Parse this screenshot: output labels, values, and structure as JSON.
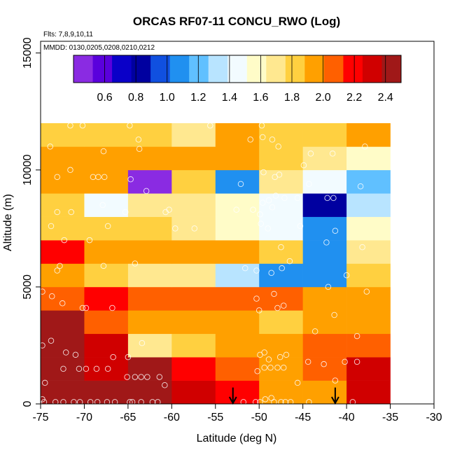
{
  "chart_data": {
    "type": "heatmap",
    "title": "ORCAS RF07-11 CONCU_RWO (Log)",
    "subtitle_flights": "Flts: 7,8,9,10,11",
    "subtitle_dates": "MMDD: 0130,0205,0208,0210,0212",
    "xlabel": "Latitude (deg N)",
    "ylabel": "Altitude (m)",
    "xlim": [
      -75,
      -30
    ],
    "ylim": [
      0,
      15500
    ],
    "xticks": [
      -75,
      -70,
      -65,
      -60,
      -55,
      -50,
      -45,
      -40,
      -35,
      -30
    ],
    "xtick_labels": [
      "-75",
      "-70",
      "-65",
      "-60",
      "-55",
      "-50",
      "-45",
      "-40",
      "-35",
      "-30"
    ],
    "yticks": [
      0,
      5000,
      10000,
      15000
    ],
    "ytick_labels": [
      "0",
      "5000",
      "10000",
      "15000"
    ],
    "colorbar": {
      "range": [
        0.4,
        2.5
      ],
      "ticks": [
        0.6,
        0.8,
        1.0,
        1.2,
        1.4,
        1.6,
        1.8,
        2.0,
        2.2,
        2.4
      ],
      "tick_labels": [
        "0.6",
        "0.8",
        "1.0",
        "1.2",
        "1.4",
        "1.6",
        "1.8",
        "2.0",
        "2.2",
        "2.4"
      ],
      "colors": [
        "#8a2be2",
        "#5a00dc",
        "#0a00c8",
        "#0000a0",
        "#1050e0",
        "#2090f0",
        "#60c0ff",
        "#b8e4ff",
        "#f2fbff",
        "#fffcc8",
        "#ffe890",
        "#ffd040",
        "#ffa000",
        "#ff6000",
        "#ff0000",
        "#d00000",
        "#a01818"
      ]
    },
    "x_edges": [
      -75,
      -70,
      -65,
      -60,
      -55,
      -50,
      -45,
      -40,
      -35
    ],
    "y_edges": [
      0,
      1000,
      2000,
      3000,
      4000,
      5000,
      6000,
      7000,
      8000,
      9000,
      10000,
      11000,
      12000
    ],
    "cells": [
      [
        2.44,
        2.44,
        2.44,
        2.28,
        2.24,
        1.92,
        1.98,
        2.28
      ],
      [
        2.44,
        2.26,
        2.44,
        2.24,
        2.02,
        1.98,
        2.08,
        2.28
      ],
      [
        2.44,
        2.3,
        1.66,
        1.82,
        1.96,
        1.96,
        2.02,
        2.1
      ],
      [
        2.44,
        2.12,
        1.9,
        1.96,
        1.98,
        1.86,
        1.96,
        1.98
      ],
      [
        2.12,
        2.22,
        2.12,
        2.06,
        2.04,
        2.02,
        2.0,
        1.96
      ],
      [
        2.0,
        1.82,
        1.64,
        1.68,
        1.32,
        1.12,
        1.12,
        1.82
      ],
      [
        2.24,
        1.9,
        1.9,
        1.9,
        1.9,
        1.82,
        1.14,
        1.68
      ],
      [
        1.82,
        1.82,
        1.76,
        1.66,
        1.56,
        1.4,
        1.12,
        1.52
      ],
      [
        1.82,
        1.46,
        1.66,
        1.68,
        1.62,
        1.4,
        0.82,
        1.38
      ],
      [
        1.92,
        1.94,
        0.48,
        1.8,
        1.14,
        1.72,
        1.5,
        1.24
      ],
      [
        1.9,
        1.96,
        1.9,
        1.92,
        1.92,
        1.82,
        1.74,
        1.6
      ],
      [
        1.86,
        1.84,
        1.86,
        1.72,
        1.9,
        1.86,
        1.88,
        1.9
      ]
    ],
    "arrows": [
      {
        "lat": -53.0,
        "alt_top": 700
      },
      {
        "lat": -41.3,
        "alt_top": 700
      }
    ],
    "points": [
      [
        -74.8,
        200
      ],
      [
        -74.6,
        80
      ],
      [
        -73.3,
        80
      ],
      [
        -72.4,
        80
      ],
      [
        -71.2,
        80
      ],
      [
        -70.5,
        80
      ],
      [
        -69.3,
        80
      ],
      [
        -68.5,
        80
      ],
      [
        -67.4,
        80
      ],
      [
        -66.5,
        80
      ],
      [
        -64.8,
        80
      ],
      [
        -64.5,
        80
      ],
      [
        -63.5,
        80
      ],
      [
        -62.2,
        80
      ],
      [
        -61.6,
        80
      ],
      [
        -51.8,
        80
      ],
      [
        -50.4,
        80
      ],
      [
        -49.9,
        80
      ],
      [
        -48.3,
        80
      ],
      [
        -47.5,
        80
      ],
      [
        -47.0,
        80
      ],
      [
        -46.4,
        80
      ],
      [
        -39.3,
        80
      ],
      [
        -44.3,
        80
      ],
      [
        -48.6,
        250
      ],
      [
        -49.3,
        200
      ],
      [
        -74.5,
        900
      ],
      [
        -72.4,
        1500
      ],
      [
        -70.6,
        1500
      ],
      [
        -69.8,
        1500
      ],
      [
        -68.6,
        1500
      ],
      [
        -67.3,
        1500
      ],
      [
        -65.1,
        1150
      ],
      [
        -64.2,
        1150
      ],
      [
        -63.5,
        1150
      ],
      [
        -62.8,
        1150
      ],
      [
        -61.4,
        1150
      ],
      [
        -60.8,
        800
      ],
      [
        -50.2,
        1400
      ],
      [
        -49.4,
        1550
      ],
      [
        -48.7,
        1550
      ],
      [
        -47.9,
        1550
      ],
      [
        -47.2,
        1550
      ],
      [
        -44.4,
        1800
      ],
      [
        -42.6,
        1700
      ],
      [
        -40.2,
        1800
      ],
      [
        -38.8,
        1800
      ],
      [
        -45.6,
        900
      ],
      [
        -41.3,
        1000
      ],
      [
        -74.8,
        2500
      ],
      [
        -73.8,
        2700
      ],
      [
        -72.1,
        2200
      ],
      [
        -71.0,
        2100
      ],
      [
        -66.7,
        2000
      ],
      [
        -65.0,
        2000
      ],
      [
        -63.4,
        2600
      ],
      [
        -49.9,
        2100
      ],
      [
        -49.4,
        2200
      ],
      [
        -48.9,
        1900
      ],
      [
        -47.6,
        2000
      ],
      [
        -46.9,
        2100
      ],
      [
        -38.8,
        2900
      ],
      [
        -43.6,
        3100
      ],
      [
        -41.4,
        3800
      ],
      [
        -73.7,
        4600
      ],
      [
        -72.5,
        4300
      ],
      [
        -70.2,
        4100
      ],
      [
        -69.8,
        4100
      ],
      [
        -66.8,
        4100
      ],
      [
        -73.1,
        5700
      ],
      [
        -72.8,
        5900
      ],
      [
        -50.0,
        4000
      ],
      [
        -50.3,
        4500
      ],
      [
        -47.9,
        4100
      ],
      [
        -47.2,
        4200
      ],
      [
        -48.3,
        4700
      ],
      [
        -37.7,
        4800
      ],
      [
        -74.8,
        4800
      ],
      [
        -67.8,
        5900
      ],
      [
        -64.2,
        6000
      ],
      [
        -51.6,
        5800
      ],
      [
        -50.3,
        5700
      ],
      [
        -48.6,
        5600
      ],
      [
        -47.4,
        5800
      ],
      [
        -42.1,
        5000
      ],
      [
        -40.0,
        5500
      ],
      [
        -46.5,
        6100
      ],
      [
        -47.5,
        6700
      ],
      [
        -42.3,
        6900
      ],
      [
        -38.2,
        6700
      ],
      [
        -72.3,
        7000
      ],
      [
        -69.4,
        7000
      ],
      [
        -67.3,
        7600
      ],
      [
        -59.6,
        7500
      ],
      [
        -57.4,
        7500
      ],
      [
        -73.8,
        7600
      ],
      [
        -73.1,
        8200
      ],
      [
        -71.5,
        8200
      ],
      [
        -67.9,
        8500
      ],
      [
        -65.3,
        8200
      ],
      [
        -60.7,
        8200
      ],
      [
        -60.3,
        8300
      ],
      [
        -52.6,
        8300
      ],
      [
        -50.7,
        8300
      ],
      [
        -49.9,
        8100
      ],
      [
        -49.6,
        8600
      ],
      [
        -48.5,
        8400
      ],
      [
        -48.9,
        8700
      ],
      [
        -48.1,
        8900
      ],
      [
        -47.1,
        8800
      ],
      [
        -45.6,
        8800
      ],
      [
        -42.2,
        8800
      ],
      [
        -41.5,
        8800
      ],
      [
        -45.3,
        7600
      ],
      [
        -49.8,
        7700
      ],
      [
        -49.0,
        7500
      ],
      [
        -41.3,
        7400
      ],
      [
        -73.1,
        9700
      ],
      [
        -71.6,
        10000
      ],
      [
        -69.0,
        9700
      ],
      [
        -68.4,
        9700
      ],
      [
        -67.7,
        9700
      ],
      [
        -64.7,
        9600
      ],
      [
        -62.9,
        9100
      ],
      [
        -52.1,
        9400
      ],
      [
        -49.5,
        9900
      ],
      [
        -48.2,
        9700
      ],
      [
        -47.7,
        9800
      ],
      [
        -44.3,
        9400
      ],
      [
        -44.9,
        10200
      ],
      [
        -38.4,
        9300
      ],
      [
        -73.9,
        11000
      ],
      [
        -71.6,
        11900
      ],
      [
        -70.2,
        11900
      ],
      [
        -67.8,
        10800
      ],
      [
        -64.8,
        11900
      ],
      [
        -63.8,
        11300
      ],
      [
        -63.7,
        10900
      ],
      [
        -55.6,
        11900
      ],
      [
        -51.0,
        11300
      ],
      [
        -49.7,
        11900
      ],
      [
        -49.6,
        11400
      ],
      [
        -48.5,
        11300
      ],
      [
        -47.8,
        11000
      ],
      [
        -37.9,
        11000
      ],
      [
        -41.6,
        10700
      ],
      [
        -44.1,
        10700
      ]
    ]
  }
}
